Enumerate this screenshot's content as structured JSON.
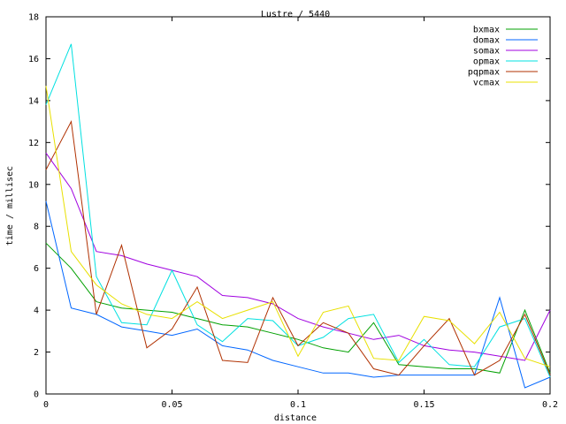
{
  "chart_data": {
    "type": "line",
    "title": "Lustre / 5440",
    "xlabel": "distance",
    "ylabel": "time / millisec",
    "xlim": [
      0,
      0.2
    ],
    "ylim": [
      0,
      18
    ],
    "x_ticks": [
      0,
      0.05,
      0.1,
      0.15,
      0.2
    ],
    "x_tick_labels": [
      "0",
      "0.05",
      "0.1",
      "0.15",
      "0.2"
    ],
    "y_ticks": [
      0,
      2,
      4,
      6,
      8,
      10,
      12,
      14,
      16,
      18
    ],
    "y_tick_labels": [
      "0",
      "2",
      "4",
      "6",
      "8",
      "10",
      "12",
      "14",
      "16",
      "18"
    ],
    "grid": false,
    "legend_position": "top-right",
    "x": [
      0,
      0.01,
      0.02,
      0.03,
      0.04,
      0.05,
      0.06,
      0.07,
      0.08,
      0.09,
      0.1,
      0.11,
      0.12,
      0.13,
      0.14,
      0.15,
      0.16,
      0.17,
      0.18,
      0.19,
      0.2
    ],
    "series": [
      {
        "name": "bxmax",
        "color": "#00a000",
        "values": [
          7.2,
          6.0,
          4.4,
          4.1,
          4.0,
          3.9,
          3.6,
          3.3,
          3.2,
          2.9,
          2.6,
          2.2,
          2.0,
          3.4,
          1.4,
          1.3,
          1.2,
          1.2,
          1.0,
          4.0,
          1.0
        ]
      },
      {
        "name": "domax",
        "color": "#0066ff",
        "values": [
          9.2,
          4.1,
          3.8,
          3.2,
          3.0,
          2.8,
          3.1,
          2.3,
          2.1,
          1.6,
          1.3,
          1.0,
          1.0,
          0.8,
          0.9,
          0.9,
          0.9,
          0.9,
          4.6,
          0.3,
          0.8
        ]
      },
      {
        "name": "somax",
        "color": "#a000e0",
        "values": [
          11.5,
          9.8,
          6.8,
          6.6,
          6.2,
          5.9,
          5.6,
          4.7,
          4.6,
          4.3,
          3.6,
          3.2,
          2.9,
          2.6,
          2.8,
          2.3,
          2.1,
          2.0,
          1.8,
          1.6,
          4.0
        ]
      },
      {
        "name": "opmax",
        "color": "#00e0e0",
        "values": [
          13.8,
          16.7,
          5.6,
          3.4,
          3.3,
          5.9,
          3.3,
          2.5,
          3.6,
          3.5,
          2.3,
          2.7,
          3.6,
          3.8,
          1.5,
          2.6,
          1.4,
          1.3,
          3.2,
          3.6,
          0.8
        ]
      },
      {
        "name": "pqpmax",
        "color": "#b03000",
        "values": [
          10.7,
          13.0,
          3.8,
          7.1,
          2.2,
          3.1,
          5.1,
          1.6,
          1.5,
          4.6,
          2.3,
          3.4,
          2.9,
          1.2,
          0.9,
          2.3,
          3.6,
          0.9,
          1.6,
          3.8,
          0.9
        ]
      },
      {
        "name": "vcmax",
        "color": "#e8e000",
        "values": [
          14.7,
          6.8,
          5.2,
          4.3,
          3.8,
          3.6,
          4.4,
          3.6,
          4.0,
          4.4,
          1.8,
          3.9,
          4.2,
          1.7,
          1.6,
          3.7,
          3.5,
          2.4,
          3.9,
          1.7,
          1.3
        ]
      }
    ]
  }
}
